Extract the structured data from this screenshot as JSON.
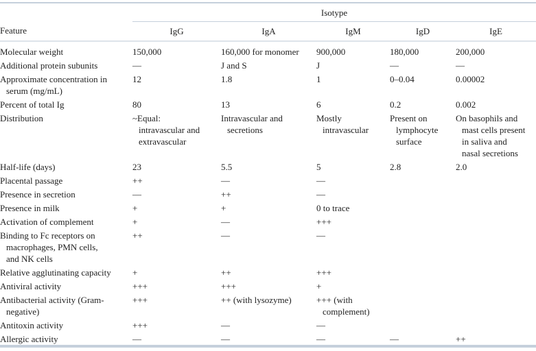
{
  "group_header": "Isotype",
  "columns": [
    "Feature",
    "IgG",
    "IgA",
    "IgM",
    "IgD",
    "IgE"
  ],
  "rows": [
    {
      "feature": [
        "Molecular weight"
      ],
      "values": [
        [
          "150,000"
        ],
        [
          "160,000 for monomer"
        ],
        [
          "900,000"
        ],
        [
          "180,000"
        ],
        [
          "200,000"
        ]
      ]
    },
    {
      "feature": [
        "Additional protein subunits"
      ],
      "values": [
        [
          "—"
        ],
        [
          "J and S"
        ],
        [
          "J"
        ],
        [
          "—"
        ],
        [
          "—"
        ]
      ]
    },
    {
      "feature": [
        "Approximate concentration in",
        "serum (mg/mL)"
      ],
      "values": [
        [
          "12"
        ],
        [
          "1.8"
        ],
        [
          "1"
        ],
        [
          "0–0.04"
        ],
        [
          "0.00002"
        ]
      ]
    },
    {
      "feature": [
        "Percent of total Ig"
      ],
      "values": [
        [
          "80"
        ],
        [
          "13"
        ],
        [
          "6"
        ],
        [
          "0.2"
        ],
        [
          "0.002"
        ]
      ]
    },
    {
      "feature": [
        "Distribution"
      ],
      "values": [
        [
          "~Equal:",
          "intravascular and",
          "extravascular"
        ],
        [
          "Intravascular and",
          "secretions"
        ],
        [
          "Mostly",
          "intravascular"
        ],
        [
          "Present on",
          "lymphocyte",
          "surface"
        ],
        [
          "On basophils and",
          "mast cells present",
          "in saliva and",
          "nasal secretions"
        ]
      ]
    },
    {
      "feature": [
        "Half-life (days)"
      ],
      "values": [
        [
          "23"
        ],
        [
          "5.5"
        ],
        [
          "5"
        ],
        [
          "2.8"
        ],
        [
          "2.0"
        ]
      ]
    },
    {
      "feature": [
        "Placental passage"
      ],
      "values": [
        [
          "++"
        ],
        [
          "—"
        ],
        [
          "—"
        ],
        [],
        []
      ]
    },
    {
      "feature": [
        "Presence in secretion"
      ],
      "values": [
        [
          "—"
        ],
        [
          "++"
        ],
        [
          "—"
        ],
        [],
        []
      ]
    },
    {
      "feature": [
        "Presence in milk"
      ],
      "values": [
        [
          "+"
        ],
        [
          "+"
        ],
        [
          "0 to trace"
        ],
        [],
        []
      ]
    },
    {
      "feature": [
        "Activation of complement"
      ],
      "values": [
        [
          "+"
        ],
        [
          "—"
        ],
        [
          "+++"
        ],
        [],
        []
      ]
    },
    {
      "feature": [
        "Binding to Fc receptors on",
        "macrophages, PMN cells,",
        "and NK cells"
      ],
      "values": [
        [
          "++"
        ],
        [
          "—"
        ],
        [
          "—"
        ],
        [],
        []
      ]
    },
    {
      "feature": [
        "Relative agglutinating capacity"
      ],
      "values": [
        [
          "+"
        ],
        [
          "++"
        ],
        [
          "+++"
        ],
        [],
        []
      ]
    },
    {
      "feature": [
        "Antiviral activity"
      ],
      "values": [
        [
          "+++"
        ],
        [
          "+++"
        ],
        [
          "+"
        ],
        [],
        []
      ]
    },
    {
      "feature": [
        "Antibacterial activity (Gram-",
        "negative)"
      ],
      "values": [
        [
          "+++"
        ],
        [
          "++ (with lysozyme)"
        ],
        [
          "+++ (with",
          "complement)"
        ],
        [],
        []
      ]
    },
    {
      "feature": [
        "Antitoxin activity"
      ],
      "values": [
        [
          "+++"
        ],
        [
          "—"
        ],
        [
          "—"
        ],
        [],
        []
      ]
    },
    {
      "feature": [
        "Allergic activity"
      ],
      "values": [
        [
          "—"
        ],
        [
          "—"
        ],
        [
          "—"
        ],
        [
          "—"
        ],
        [
          "++"
        ]
      ]
    }
  ]
}
